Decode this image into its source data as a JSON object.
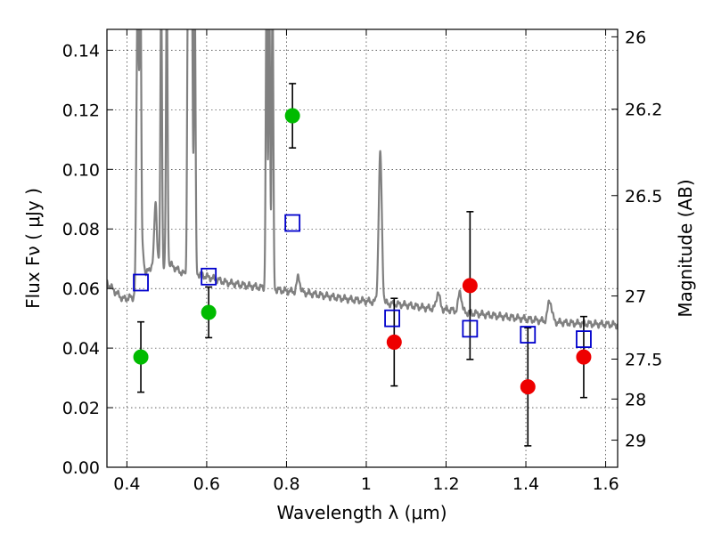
{
  "chart_data": {
    "type": "scatter",
    "xlabel": "Wavelength  λ (μm)",
    "ylabel": "Flux  Fν  ( μJy )",
    "ylabel_right": "Magnitude (AB)",
    "xlim": [
      0.35,
      1.63
    ],
    "ylim": [
      0.0,
      0.147
    ],
    "grid": true,
    "x_ticks": [
      0.4,
      0.6,
      0.8,
      1.0,
      1.2,
      1.4,
      1.6
    ],
    "x_tick_labels": [
      "0.4",
      "0.6",
      "0.8",
      "1",
      "1.2",
      "1.4",
      "1.6"
    ],
    "y_ticks": [
      0.0,
      0.02,
      0.04,
      0.06,
      0.08,
      0.1,
      0.12,
      0.14
    ],
    "y_tick_labels": [
      "0.00",
      "0.02",
      "0.04",
      "0.06",
      "0.08",
      "0.10",
      "0.12",
      "0.14"
    ],
    "right_ticks": [
      {
        "label": "26",
        "flux": 0.1445
      },
      {
        "label": "26.2",
        "flux": 0.1202
      },
      {
        "label": "26.5",
        "flux": 0.0912
      },
      {
        "label": "27",
        "flux": 0.0575
      },
      {
        "label": "27.5",
        "flux": 0.0363
      },
      {
        "label": "28",
        "flux": 0.0229
      },
      {
        "label": "29",
        "flux": 0.0091
      }
    ],
    "series": [
      {
        "color": "#00bb00",
        "marker": "circle",
        "points": [
          {
            "x": 0.435,
            "y": 0.037,
            "err": 0.0118
          },
          {
            "x": 0.605,
            "y": 0.052,
            "err": 0.0085
          },
          {
            "x": 0.815,
            "y": 0.118,
            "err": 0.0108
          }
        ]
      },
      {
        "color": "#ee0000",
        "marker": "circle",
        "points": [
          {
            "x": 1.07,
            "y": 0.042,
            "err": 0.0147
          },
          {
            "x": 1.26,
            "y": 0.061,
            "err": 0.0248
          },
          {
            "x": 1.405,
            "y": 0.027,
            "err": 0.0198
          },
          {
            "x": 1.545,
            "y": 0.037,
            "err": 0.0136
          }
        ]
      },
      {
        "color": "#0000cc",
        "marker": "open-square",
        "points": [
          {
            "x": 0.435,
            "y": 0.062
          },
          {
            "x": 0.605,
            "y": 0.064
          },
          {
            "x": 0.815,
            "y": 0.082
          },
          {
            "x": 1.065,
            "y": 0.05
          },
          {
            "x": 1.26,
            "y": 0.0465
          },
          {
            "x": 1.405,
            "y": 0.0445
          },
          {
            "x": 1.545,
            "y": 0.043
          }
        ]
      }
    ],
    "spectrum": {
      "color": "#808080",
      "continuum": [
        [
          0.35,
          0.062
        ],
        [
          0.37,
          0.059
        ],
        [
          0.39,
          0.0565
        ],
        [
          0.41,
          0.057
        ],
        [
          0.425,
          0.057
        ],
        [
          0.432,
          0.064
        ],
        [
          0.44,
          0.064
        ],
        [
          0.455,
          0.066
        ],
        [
          0.47,
          0.07
        ],
        [
          0.49,
          0.067
        ],
        [
          0.51,
          0.068
        ],
        [
          0.53,
          0.066
        ],
        [
          0.555,
          0.064
        ],
        [
          0.575,
          0.065
        ],
        [
          0.6,
          0.064
        ],
        [
          0.625,
          0.063
        ],
        [
          0.65,
          0.062
        ],
        [
          0.675,
          0.0615
        ],
        [
          0.7,
          0.061
        ],
        [
          0.73,
          0.0605
        ],
        [
          0.76,
          0.0598
        ],
        [
          0.8,
          0.0592
        ],
        [
          0.85,
          0.0585
        ],
        [
          0.9,
          0.0575
        ],
        [
          0.95,
          0.0565
        ],
        [
          1.0,
          0.0558
        ],
        [
          1.05,
          0.055
        ],
        [
          1.1,
          0.0545
        ],
        [
          1.15,
          0.0535
        ],
        [
          1.2,
          0.053
        ],
        [
          1.25,
          0.052
        ],
        [
          1.3,
          0.0512
        ],
        [
          1.35,
          0.0505
        ],
        [
          1.4,
          0.0498
        ],
        [
          1.45,
          0.049
        ],
        [
          1.5,
          0.0485
        ],
        [
          1.55,
          0.0482
        ],
        [
          1.6,
          0.048
        ],
        [
          1.63,
          0.0478
        ]
      ],
      "lines": [
        {
          "x": 0.427,
          "peak": 0.16,
          "w": 0.003
        },
        {
          "x": 0.434,
          "peak": 0.16,
          "w": 0.002
        },
        {
          "x": 0.44,
          "peak": 0.072,
          "w": 0.003
        },
        {
          "x": 0.472,
          "peak": 0.089,
          "w": 0.003
        },
        {
          "x": 0.486,
          "peak": 0.16,
          "w": 0.002
        },
        {
          "x": 0.5,
          "peak": 0.16,
          "w": 0.002
        },
        {
          "x": 0.553,
          "peak": 0.16,
          "w": 0.002
        },
        {
          "x": 0.558,
          "peak": 0.16,
          "w": 0.002
        },
        {
          "x": 0.563,
          "peak": 0.16,
          "w": 0.002
        },
        {
          "x": 0.57,
          "peak": 0.16,
          "w": 0.002
        },
        {
          "x": 0.75,
          "peak": 0.16,
          "w": 0.002
        },
        {
          "x": 0.757,
          "peak": 0.16,
          "w": 0.002
        },
        {
          "x": 0.765,
          "peak": 0.16,
          "w": 0.002
        },
        {
          "x": 0.83,
          "peak": 0.064,
          "w": 0.004
        },
        {
          "x": 1.035,
          "peak": 0.105,
          "w": 0.004
        },
        {
          "x": 1.18,
          "peak": 0.059,
          "w": 0.004
        },
        {
          "x": 1.235,
          "peak": 0.059,
          "w": 0.004
        },
        {
          "x": 1.46,
          "peak": 0.056,
          "w": 0.005
        }
      ]
    }
  }
}
